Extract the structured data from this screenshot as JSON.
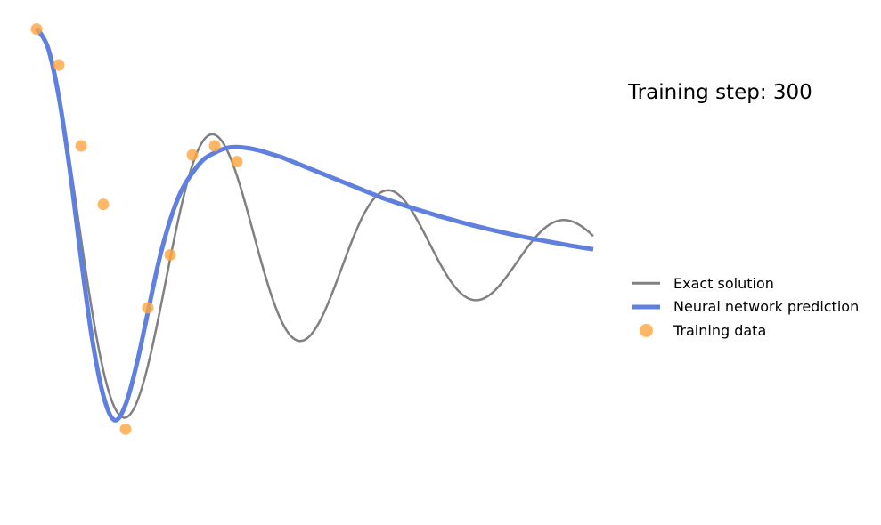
{
  "annotation": {
    "prefix": "Training step: ",
    "step": 300
  },
  "legend": {
    "exact_label": "Exact solution",
    "prediction_label": "Neural network prediction",
    "training_label": "Training data"
  },
  "colors": {
    "exact": "#808080",
    "prediction": "#6080e0",
    "training": "#ffa540"
  },
  "chart_data": {
    "type": "line",
    "axes_visible": false,
    "xlim": [
      0,
      1
    ],
    "ylim": [
      -0.85,
      1.05
    ],
    "exact_solution": {
      "delta": 2,
      "omega0": 20,
      "x_range": [
        0,
        1
      ]
    },
    "series": [
      {
        "name": "Exact solution",
        "x": [
          0.0,
          0.02,
          0.04,
          0.06,
          0.08,
          0.1,
          0.12,
          0.14,
          0.16,
          0.18,
          0.2,
          0.22,
          0.24,
          0.26,
          0.28,
          0.3,
          0.32,
          0.34,
          0.36,
          0.38,
          0.4,
          0.42,
          0.44,
          0.46,
          0.48,
          0.5,
          0.52,
          0.54,
          0.56,
          0.58,
          0.6,
          0.62,
          0.64,
          0.66,
          0.68,
          0.7,
          0.72,
          0.74,
          0.76,
          0.78,
          0.8,
          0.82,
          0.84,
          0.86,
          0.88,
          0.9,
          0.92,
          0.94,
          0.96,
          0.98,
          1.0
        ],
        "y": [
          1.0,
          0.917,
          0.688,
          0.358,
          -0.009,
          -0.348,
          -0.602,
          -0.731,
          -0.722,
          -0.585,
          -0.352,
          -0.072,
          0.197,
          0.404,
          0.514,
          0.511,
          0.405,
          0.223,
          0.007,
          -0.197,
          -0.349,
          -0.421,
          -0.404,
          -0.307,
          -0.156,
          0.014,
          0.166,
          0.27,
          0.305,
          0.269,
          0.174,
          0.045,
          -0.087,
          -0.191,
          -0.244,
          -0.24,
          -0.184,
          -0.092,
          0.015,
          0.11,
          0.172,
          0.189,
          0.163,
          0.1,
          0.019,
          -0.06,
          -0.117,
          -0.142,
          -0.131,
          -0.089,
          -0.029
        ]
      },
      {
        "name": "Neural network prediction",
        "x": [
          0.0,
          0.02,
          0.04,
          0.06,
          0.08,
          0.1,
          0.12,
          0.14,
          0.16,
          0.18,
          0.2,
          0.22,
          0.24,
          0.26,
          0.28,
          0.3,
          0.32,
          0.34,
          0.36,
          0.38,
          0.4,
          0.42,
          0.44,
          0.46,
          0.48,
          0.5,
          0.52,
          0.54,
          0.56,
          0.58,
          0.6,
          0.62,
          0.64,
          0.66,
          0.68,
          0.7,
          0.72,
          0.74,
          0.76,
          0.78,
          0.8,
          0.82,
          0.84,
          0.86,
          0.88,
          0.9,
          0.92,
          0.94,
          0.96,
          0.98,
          1.0
        ],
        "y": [
          1.0,
          0.92,
          0.7,
          0.37,
          -0.02,
          -0.38,
          -0.63,
          -0.74,
          -0.67,
          -0.49,
          -0.26,
          -0.03,
          0.15,
          0.28,
          0.36,
          0.42,
          0.45,
          0.47,
          0.475,
          0.47,
          0.46,
          0.445,
          0.43,
          0.41,
          0.39,
          0.37,
          0.35,
          0.33,
          0.31,
          0.29,
          0.27,
          0.25,
          0.233,
          0.216,
          0.2,
          0.185,
          0.17,
          0.156,
          0.142,
          0.129,
          0.117,
          0.105,
          0.094,
          0.083,
          0.073,
          0.063,
          0.054,
          0.045,
          0.036,
          0.028,
          0.02
        ]
      },
      {
        "name": "Training data",
        "type": "scatter",
        "x": [
          0.0,
          0.04,
          0.08,
          0.12,
          0.16,
          0.2,
          0.24,
          0.28,
          0.32,
          0.36
        ],
        "y": [
          1.0,
          0.84,
          0.48,
          0.22,
          -0.78,
          -0.24,
          -0.005,
          0.44,
          0.48,
          0.41
        ]
      }
    ]
  }
}
